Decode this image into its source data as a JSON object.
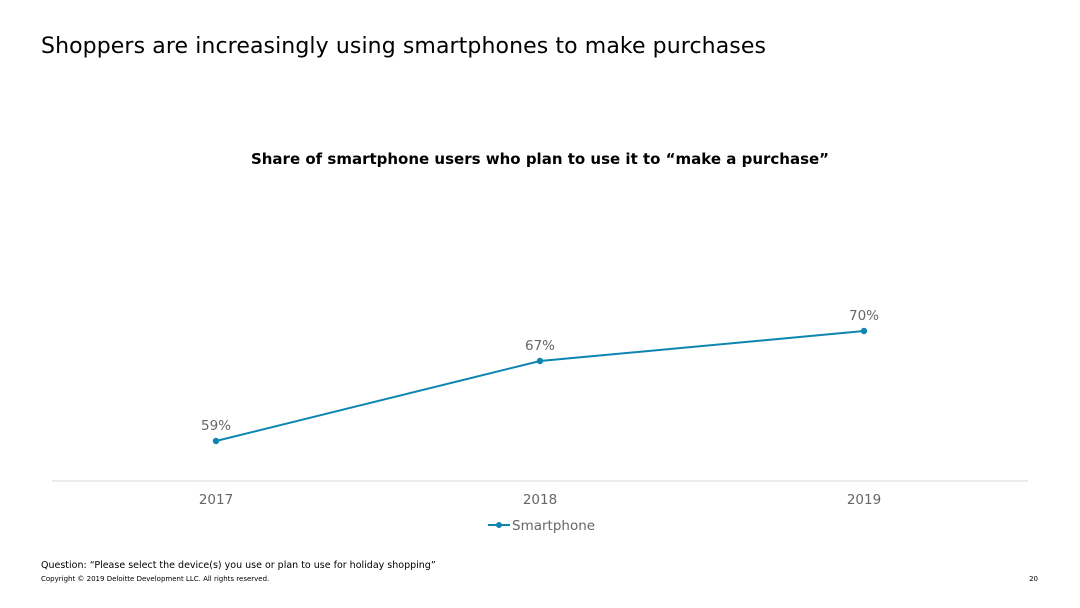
{
  "slide": {
    "title": "Shoppers are increasingly using smartphones to make purchases",
    "footnote": "Question: “Please select the device(s) you use or plan to use for holiday shopping”",
    "copyright": "Copyright © 2019 Deloitte Development LLC. All rights reserved.",
    "page_number": "20"
  },
  "colors": {
    "series": "#0d85b1",
    "axis_text": "#666666",
    "axis_line": "#d9d9d9"
  },
  "chart_data": {
    "type": "line",
    "title": "Share of smartphone users who plan to use it to “make a purchase”",
    "categories": [
      "2017",
      "2018",
      "2019"
    ],
    "series": [
      {
        "name": "Smartphone",
        "values": [
          59,
          67,
          70
        ],
        "labels": [
          "59%",
          "67%",
          "70%"
        ]
      }
    ],
    "legend": "bottom",
    "grid": false,
    "xlabel": "",
    "ylabel": ""
  }
}
